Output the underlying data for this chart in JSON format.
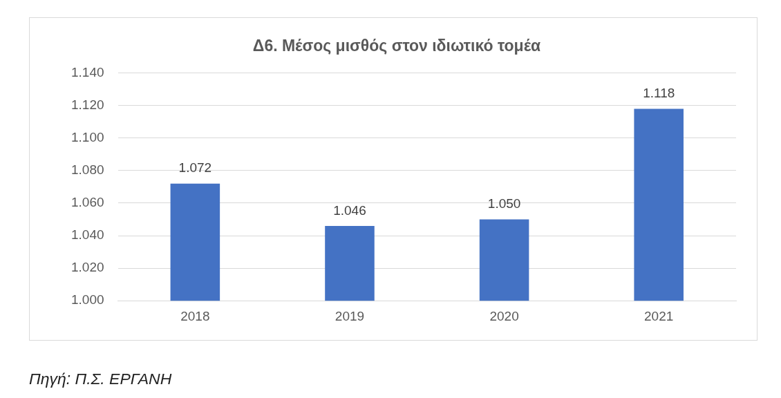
{
  "chart_data": {
    "type": "bar",
    "title": "Δ6. Μέσος μισθός στον ιδιωτικό τομέα",
    "categories": [
      "2018",
      "2019",
      "2020",
      "2021"
    ],
    "values": [
      1072,
      1046,
      1050,
      1118
    ],
    "value_labels": [
      "1.072",
      "1.046",
      "1.050",
      "1.118"
    ],
    "color": "#4472c4",
    "ylim": [
      1000,
      1140
    ],
    "yticks": [
      {
        "value": 1000,
        "label": "1.000"
      },
      {
        "value": 1020,
        "label": "1.020"
      },
      {
        "value": 1040,
        "label": "1.040"
      },
      {
        "value": 1060,
        "label": "1.060"
      },
      {
        "value": 1080,
        "label": "1.080"
      },
      {
        "value": 1100,
        "label": "1.100"
      },
      {
        "value": 1120,
        "label": "1.120"
      },
      {
        "value": 1140,
        "label": "1.140"
      }
    ],
    "grid": "y",
    "annotations": [
      "Πηγή: Π.Σ. ΕΡΓΑΝΗ"
    ]
  }
}
